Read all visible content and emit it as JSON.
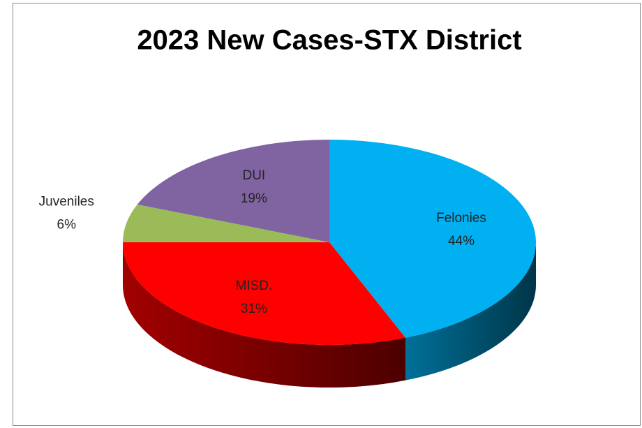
{
  "chart_data": {
    "type": "pie",
    "title": "2023 New Cases-STX District",
    "categories": [
      "Felonies",
      "MISD.",
      "Juveniles",
      "DUI"
    ],
    "values": [
      44,
      31,
      6,
      19
    ],
    "value_labels": [
      "44%",
      "31%",
      "6%",
      "19%"
    ],
    "colors": [
      "#00b0f0",
      "#ff0000",
      "#9bbb59",
      "#8064a2"
    ]
  }
}
